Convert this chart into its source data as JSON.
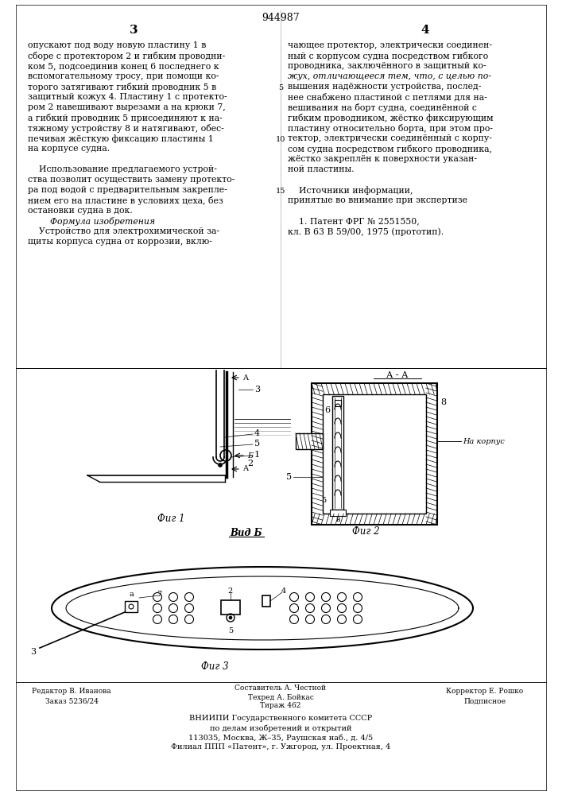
{
  "patent_number": "944987",
  "col1_text": [
    "опускают под воду новую пластину 1 в",
    "сборе с протектором 2 и гибким проводни-",
    "ком 5, подсоединив конец 6 последнего к",
    "вспомогательному тросу, при помощи ко-",
    "торого затягивают гибкий проводник 5 в",
    "защитный кожух 4. Пластину 1 с протекто-",
    "ром 2 навешивают вырезами а на крюки 7,",
    "а гибкий проводник 5 присоединяют к на-",
    "тяжному устройству 8 и натягивают, обес-",
    "печивая жёсткую фиксацию пластины 1",
    "на корпусе судна.",
    "",
    "    Использование предлагаемого устрой-",
    "ства позволит осуществить замену протекто-",
    "ра под водой с предварительным закрепле-",
    "нием его на пластине в условиях цеха, без",
    "остановки судна в док.",
    "        Формула изобретения",
    "    Устройство для электрохимической за-",
    "щиты корпуса судна от коррозии, вклю-"
  ],
  "col2_text": [
    "чающее протектор, электрически соединен-",
    "ный с корпусом судна посредством гибкого",
    "проводника, заключённого в защитный ко-",
    "жух, отличающееся тем, что, с целью по-",
    "вышения надёжности устройства, послед-",
    "нее снабжено пластиной с петлями для на-",
    "вешивания на борт судна, соединённой с",
    "гибким проводником, жёстко фиксирующим",
    "пластину относительно борта, при этом про-",
    "тектор, электрически соединённый с корпу-",
    "сом судна посредством гибкого проводника,",
    "жёстко закреплён к поверхности указан-",
    "ной пластины.",
    "",
    "    Источники информации,",
    "принятые во внимание при экспертизе",
    "",
    "    1. Патент ФРГ № 2551550,",
    "кл. В 63 В 59/00, 1975 (прототип)."
  ],
  "background_color": "#ffffff",
  "text_color": "#000000",
  "font_size_main": 7.8,
  "font_size_patent": 9,
  "font_size_page": 11
}
